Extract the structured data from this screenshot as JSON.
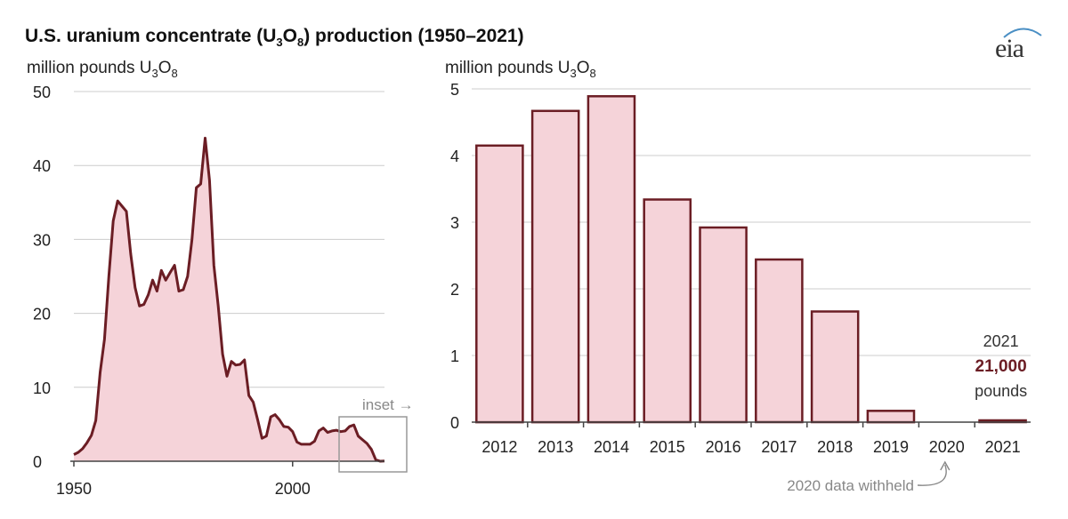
{
  "title": {
    "prefix": "U.S. uranium concentrate (U",
    "sub3": "3",
    "mid": "O",
    "sub8": "8",
    "suffix": ") production (1950–2021)"
  },
  "logo": "eia",
  "colors": {
    "fill": "#f5d3d9",
    "stroke": "#6b1d24",
    "grid": "#cccccc",
    "annotation": "#888888"
  },
  "chart_data": [
    {
      "type": "area",
      "ylabel": "million pounds U3O8",
      "ylabel_parts": {
        "prefix": "million pounds U",
        "sub3": "3",
        "mid": "O",
        "sub8": "8"
      },
      "ylim": [
        0,
        50
      ],
      "yticks": [
        0,
        10,
        20,
        30,
        40,
        50
      ],
      "xlim": [
        1950,
        2021
      ],
      "xticks": [
        1950,
        2000
      ],
      "x": [
        1950,
        1951,
        1952,
        1953,
        1954,
        1955,
        1956,
        1957,
        1958,
        1959,
        1960,
        1961,
        1962,
        1963,
        1964,
        1965,
        1966,
        1967,
        1968,
        1969,
        1970,
        1971,
        1972,
        1973,
        1974,
        1975,
        1976,
        1977,
        1978,
        1979,
        1980,
        1981,
        1982,
        1983,
        1984,
        1985,
        1986,
        1987,
        1988,
        1989,
        1990,
        1991,
        1992,
        1993,
        1994,
        1995,
        1996,
        1997,
        1998,
        1999,
        2000,
        2001,
        2002,
        2003,
        2004,
        2005,
        2006,
        2007,
        2008,
        2009,
        2010,
        2011,
        2012,
        2013,
        2014,
        2015,
        2016,
        2017,
        2018,
        2019,
        2020,
        2021
      ],
      "values": [
        0.9,
        1.2,
        1.7,
        2.5,
        3.5,
        5.5,
        12.0,
        16.5,
        25.0,
        32.5,
        35.2,
        34.5,
        33.8,
        28.0,
        23.5,
        21.0,
        21.2,
        22.5,
        24.5,
        23.0,
        25.8,
        24.5,
        25.5,
        26.5,
        23.0,
        23.2,
        25.0,
        30.0,
        37.0,
        37.5,
        43.7,
        38.0,
        26.5,
        21.0,
        14.5,
        11.5,
        13.5,
        13.0,
        13.1,
        13.7,
        8.9,
        8.0,
        5.6,
        3.1,
        3.4,
        6.0,
        6.3,
        5.6,
        4.7,
        4.6,
        4.0,
        2.6,
        2.3,
        2.3,
        2.3,
        2.7,
        4.1,
        4.5,
        3.9,
        4.1,
        4.2,
        4.0,
        4.1,
        4.7,
        4.9,
        3.4,
        2.9,
        2.4,
        1.6,
        0.2,
        0.0,
        0.021
      ],
      "annotation": "inset →"
    },
    {
      "type": "bar",
      "ylabel": "million pounds U3O8",
      "ylabel_parts": {
        "prefix": "million pounds U",
        "sub3": "3",
        "mid": "O",
        "sub8": "8"
      },
      "ylim": [
        0,
        5
      ],
      "yticks": [
        0,
        1,
        2,
        3,
        4,
        5
      ],
      "categories": [
        "2012",
        "2013",
        "2014",
        "2015",
        "2016",
        "2017",
        "2018",
        "2019",
        "2020",
        "2021"
      ],
      "values": [
        4.15,
        4.67,
        4.89,
        3.34,
        2.92,
        2.44,
        1.66,
        0.17,
        null,
        0.021
      ],
      "annotations": {
        "year": "2021",
        "amount": "21,000",
        "unit": "pounds",
        "withheld": "2020 data withheld"
      }
    }
  ]
}
